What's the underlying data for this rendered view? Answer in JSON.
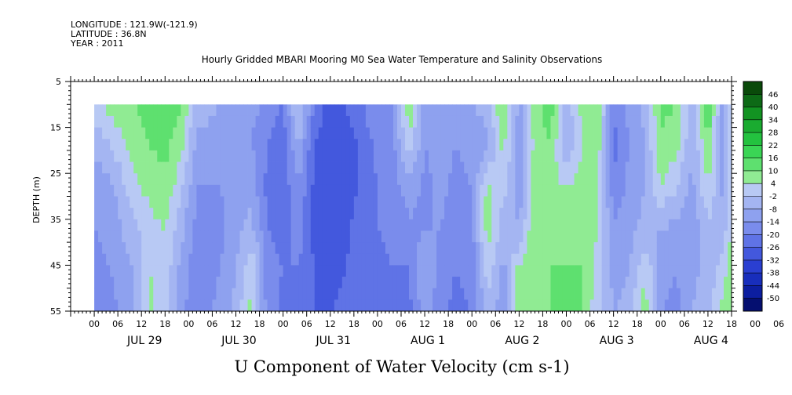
{
  "header": {
    "longitude": "LONGITUDE : 121.9W(-121.9)",
    "latitude": "LATITUDE : 36.8N",
    "year": "YEAR : 2011"
  },
  "chart_data": {
    "type": "heatmap",
    "title": "Hourly Gridded MBARI Mooring M0 Sea Water Temperature and Salinity Observations",
    "xlabel": "U Component of Water Velocity (cm s-1)",
    "ylabel": "DEPTH (m)",
    "y_ticks": [
      5,
      15,
      25,
      35,
      45,
      55
    ],
    "y_range": [
      5,
      55
    ],
    "y_inverted": true,
    "data_depth_range": [
      10,
      55
    ],
    "x_hour_ticks": [
      "00",
      "06",
      "12",
      "18",
      "00",
      "06",
      "12",
      "18",
      "00",
      "06",
      "12",
      "18",
      "00",
      "06",
      "12",
      "18",
      "00",
      "06",
      "12",
      "18",
      "00",
      "06",
      "12",
      "18",
      "00",
      "06",
      "12",
      "18",
      "00",
      "06",
      "12",
      "18"
    ],
    "x_days": [
      "JUL 29",
      "JUL 30",
      "JUL 31",
      "AUG  1",
      "AUG  2",
      "AUG  3",
      "AUG  4"
    ],
    "x_range_hours": [
      -6,
      162
    ],
    "data_start_hour": 0,
    "colorbar_levels": [
      "46",
      "40",
      "34",
      "28",
      "22",
      "16",
      "10",
      "4",
      "-2",
      "-8",
      "-14",
      "-20",
      "-26",
      "-32",
      "-38",
      "-44",
      "-50"
    ],
    "colorbar_colors": [
      "#0a4a0a",
      "#0d6a16",
      "#129322",
      "#1aab30",
      "#23c23f",
      "#3ad555",
      "#5ee06f",
      "#90eb93",
      "#b8c9f4",
      "#a4b5f2",
      "#8ea1ef",
      "#7a8cec",
      "#5f73e6",
      "#4358dd",
      "#2a3fd1",
      "#182ebc",
      "#0c1ea0",
      "#050f70"
    ],
    "value_columns": [
      {
        "t": 0,
        "profile": [
          2,
          -6,
          -12,
          -14,
          -16,
          -18
        ]
      },
      {
        "t": 4,
        "profile": [
          6,
          -2,
          -10,
          -12,
          -14,
          -16
        ]
      },
      {
        "t": 10,
        "profile": [
          10,
          6,
          2,
          -4,
          -8,
          -10
        ]
      },
      {
        "t": 14,
        "profile": [
          14,
          10,
          6,
          2,
          4,
          6
        ]
      },
      {
        "t": 18,
        "profile": [
          16,
          12,
          8,
          4,
          2,
          0
        ]
      },
      {
        "t": 22,
        "profile": [
          10,
          6,
          0,
          -6,
          -10,
          -12
        ]
      },
      {
        "t": 26,
        "profile": [
          -4,
          -10,
          -14,
          -16,
          -18,
          -18
        ]
      },
      {
        "t": 32,
        "profile": [
          -8,
          -12,
          -14,
          -16,
          -14,
          -12
        ]
      },
      {
        "t": 36,
        "profile": [
          -10,
          -12,
          -12,
          -10,
          -8,
          -6
        ]
      },
      {
        "t": 40,
        "profile": [
          -12,
          -14,
          -10,
          -6,
          4,
          6
        ]
      },
      {
        "t": 44,
        "profile": [
          -16,
          -20,
          -22,
          -20,
          -18,
          -16
        ]
      },
      {
        "t": 48,
        "profile": [
          -20,
          -24,
          -24,
          -22,
          -20,
          -22
        ]
      },
      {
        "t": 52,
        "profile": [
          2,
          -8,
          -14,
          -18,
          -20,
          -22
        ]
      },
      {
        "t": 56,
        "profile": [
          -22,
          -26,
          -28,
          -28,
          -26,
          -26
        ]
      },
      {
        "t": 60,
        "profile": [
          -28,
          -32,
          -32,
          -30,
          -28,
          -26
        ]
      },
      {
        "t": 64,
        "profile": [
          -26,
          -30,
          -30,
          -28,
          -26,
          -24
        ]
      },
      {
        "t": 68,
        "profile": [
          -20,
          -24,
          -24,
          -22,
          -22,
          -22
        ]
      },
      {
        "t": 72,
        "profile": [
          -16,
          -18,
          -20,
          -20,
          -22,
          -22
        ]
      },
      {
        "t": 76,
        "profile": [
          -14,
          -16,
          -18,
          -18,
          -20,
          -20
        ]
      },
      {
        "t": 80,
        "profile": [
          10,
          2,
          -10,
          -16,
          -20,
          -22
        ]
      },
      {
        "t": 84,
        "profile": [
          -12,
          -14,
          -16,
          -14,
          -8,
          -10
        ]
      },
      {
        "t": 88,
        "profile": [
          -10,
          -12,
          -12,
          -14,
          -16,
          -18
        ]
      },
      {
        "t": 92,
        "profile": [
          -12,
          -14,
          -16,
          -18,
          -20,
          -22
        ]
      },
      {
        "t": 96,
        "profile": [
          -8,
          -12,
          -14,
          -16,
          -18,
          -20
        ]
      },
      {
        "t": 100,
        "profile": [
          -6,
          -10,
          6,
          8,
          2,
          -4
        ]
      },
      {
        "t": 104,
        "profile": [
          12,
          6,
          0,
          -6,
          -10,
          -12
        ]
      },
      {
        "t": 108,
        "profile": [
          -10,
          -12,
          -12,
          -8,
          6,
          8
        ]
      },
      {
        "t": 112,
        "profile": [
          8,
          6,
          8,
          10,
          8,
          6
        ]
      },
      {
        "t": 116,
        "profile": [
          14,
          10,
          6,
          8,
          10,
          10
        ]
      },
      {
        "t": 120,
        "profile": [
          -6,
          -8,
          4,
          8,
          10,
          12
        ]
      },
      {
        "t": 124,
        "profile": [
          6,
          4,
          6,
          8,
          10,
          10
        ]
      },
      {
        "t": 128,
        "profile": [
          10,
          8,
          6,
          4,
          2,
          0
        ]
      },
      {
        "t": 132,
        "profile": [
          -20,
          -22,
          -18,
          -14,
          -10,
          -8
        ]
      },
      {
        "t": 136,
        "profile": [
          -12,
          -14,
          -12,
          -10,
          -8,
          -6
        ]
      },
      {
        "t": 140,
        "profile": [
          -6,
          -8,
          -8,
          -6,
          4,
          8
        ]
      },
      {
        "t": 144,
        "profile": [
          12,
          8,
          4,
          -8,
          -12,
          -14
        ]
      },
      {
        "t": 148,
        "profile": [
          10,
          6,
          -2,
          -10,
          -14,
          -16
        ]
      },
      {
        "t": 152,
        "profile": [
          -6,
          -8,
          -10,
          -12,
          -10,
          -8
        ]
      },
      {
        "t": 156,
        "profile": [
          16,
          10,
          4,
          -4,
          -6,
          -4
        ]
      },
      {
        "t": 160,
        "profile": [
          -12,
          -12,
          -10,
          -6,
          2,
          6
        ]
      },
      {
        "t": 162,
        "profile": [
          8,
          6,
          4,
          6,
          8,
          10
        ]
      }
    ]
  }
}
